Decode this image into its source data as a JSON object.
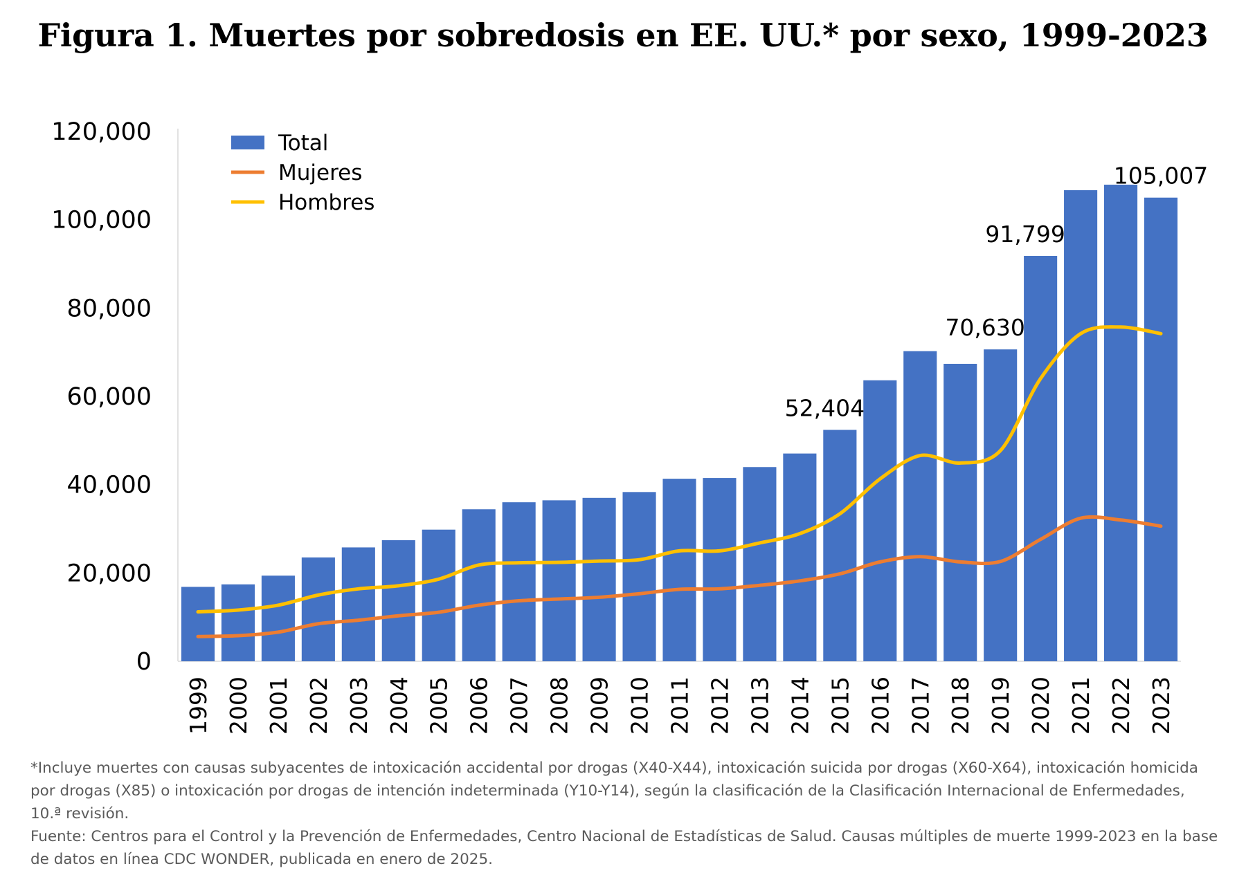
{
  "title": "Figura 1. Muertes por sobredosis en EE. UU.* por sexo, 1999-2023",
  "footnote": "*Incluye muertes con causas subyacentes de intoxicación accidental por drogas (X40-X44), intoxicación suicida por drogas (X60-X64), intoxicación homicida por drogas (X85) o intoxicación por drogas de intención indeterminada (Y10-Y14), según la clasificación de la Clasificación Internacional de Enfermedades, 10.ª revisión.",
  "source": "Fuente: Centros para el Control y la Prevención de Enfermedades, Centro Nacional de Estadísticas de Salud. Causas múltiples de muerte 1999-2023 en la base de datos en línea CDC WONDER, publicada en enero de 2025.",
  "colors": {
    "total": "#4472C4",
    "mujeres": "#ED7D31",
    "hombres": "#FFC000"
  },
  "chart_data": {
    "type": "bar",
    "categories": [
      "1999",
      "2000",
      "2001",
      "2002",
      "2003",
      "2004",
      "2005",
      "2006",
      "2007",
      "2008",
      "2009",
      "2010",
      "2011",
      "2012",
      "2013",
      "2014",
      "2015",
      "2016",
      "2017",
      "2018",
      "2019",
      "2020",
      "2021",
      "2022",
      "2023"
    ],
    "ylim": [
      0,
      120000
    ],
    "yticks": [
      "0",
      "20,000",
      "40,000",
      "60,000",
      "80,000",
      "100,000",
      "120,000"
    ],
    "legend_position": "top-left",
    "grid": false,
    "series": [
      {
        "name": "Total",
        "type": "bar",
        "values": [
          16849,
          17415,
          19394,
          23518,
          25785,
          27424,
          29813,
          34425,
          36010,
          36450,
          37004,
          38329,
          41340,
          41502,
          43982,
          47055,
          52404,
          63632,
          70237,
          67367,
          70630,
          91799,
          106699,
          107941,
          105007
        ]
      },
      {
        "name": "Mujeres",
        "type": "line",
        "values": [
          5600,
          5800,
          6600,
          8500,
          9300,
          10300,
          11100,
          12700,
          13700,
          14100,
          14500,
          15300,
          16300,
          16400,
          17200,
          18200,
          19800,
          22500,
          23700,
          22500,
          22600,
          27600,
          32400,
          32000,
          30600
        ]
      },
      {
        "name": "Hombres",
        "type": "line",
        "values": [
          11200,
          11600,
          12700,
          15000,
          16400,
          17100,
          18600,
          21800,
          22300,
          22400,
          22700,
          23000,
          25000,
          25000,
          26800,
          28900,
          33400,
          41300,
          46600,
          44900,
          47700,
          64000,
          74200,
          75700,
          74200
        ]
      }
    ],
    "data_labels": [
      {
        "category": "2015",
        "text": "52,404"
      },
      {
        "category": "2019",
        "text": "70,630"
      },
      {
        "category": "2020",
        "text": "91,799"
      },
      {
        "category": "2023",
        "text": "105,007"
      }
    ]
  }
}
